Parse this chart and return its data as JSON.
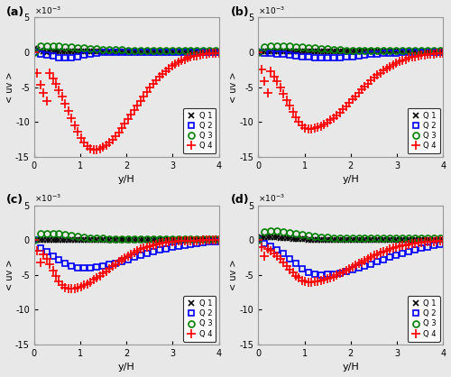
{
  "subplots": [
    "(a)",
    "(b)",
    "(c)",
    "(d)"
  ],
  "xlabel": "y/H",
  "ylabel": "< uv >",
  "xlim": [
    0,
    4
  ],
  "ylim": [
    -0.015,
    0.005
  ],
  "yticks": [
    -0.015,
    -0.01,
    -0.005,
    0,
    0.005
  ],
  "ytick_labels": [
    "-15",
    "-10",
    "-5",
    "0",
    "5"
  ],
  "xticks": [
    0,
    1,
    2,
    3,
    4
  ],
  "legend_labels": [
    "Q 1",
    "Q 2",
    "Q 3",
    "Q 4"
  ],
  "colors": [
    "black",
    "blue",
    "green",
    "red"
  ],
  "markers": [
    "x",
    "s",
    "o",
    "+"
  ],
  "bg_color": "#e8e8e8"
}
